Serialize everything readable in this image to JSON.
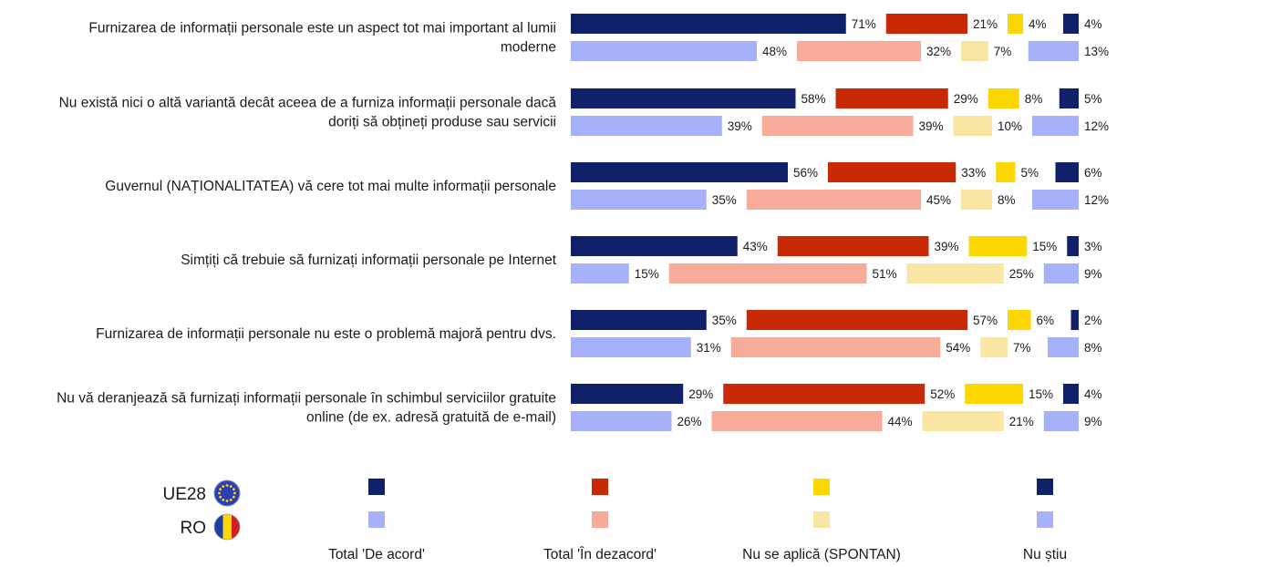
{
  "chart_data": {
    "type": "bar",
    "orientation": "horizontal",
    "stacked": true,
    "groups": [
      {
        "code": "UE28",
        "label": "UE28"
      },
      {
        "code": "RO",
        "label": "RO"
      }
    ],
    "questions": [
      {
        "label_lines": [
          "Furnizarea de informații personale este un aspect tot mai important al lumii",
          "moderne"
        ],
        "UE28": [
          71,
          21,
          4,
          4
        ],
        "RO": [
          48,
          32,
          7,
          13
        ]
      },
      {
        "label_lines": [
          "Nu există nici o altă variantă decât aceea de a furniza informații personale dacă",
          "doriți să obțineți produse sau servicii"
        ],
        "UE28": [
          58,
          29,
          8,
          5
        ],
        "RO": [
          39,
          39,
          10,
          12
        ]
      },
      {
        "label_lines": [
          "Guvernul (NAȚIONALITATEA) vă cere tot mai multe informații personale"
        ],
        "UE28": [
          56,
          33,
          5,
          6
        ],
        "RO": [
          35,
          45,
          8,
          12
        ]
      },
      {
        "label_lines": [
          "Simțiți că trebuie să furnizați informații personale pe Internet"
        ],
        "UE28": [
          43,
          39,
          15,
          3
        ],
        "RO": [
          15,
          51,
          25,
          9
        ]
      },
      {
        "label_lines": [
          "Furnizarea de informații personale nu este o problemă majoră pentru dvs."
        ],
        "UE28": [
          35,
          57,
          6,
          2
        ],
        "RO": [
          31,
          54,
          7,
          8
        ]
      },
      {
        "label_lines": [
          "Nu vă deranjează să furnizați informații personale în schimbul serviciilor gratuite",
          "online (de ex. adresă gratuită de e-mail)"
        ],
        "UE28": [
          29,
          52,
          15,
          4
        ],
        "RO": [
          26,
          44,
          21,
          9
        ]
      }
    ],
    "categories": [
      {
        "name": "Total 'De acord'",
        "UE28_color": "#10206b",
        "RO_color": "#a6b1fa"
      },
      {
        "name": "Total 'În dezacord'",
        "UE28_color": "#c92a05",
        "RO_color": "#f7ab98"
      },
      {
        "name": "Nu se aplică (SPONTAN)",
        "UE28_color": "#ffd700",
        "RO_color": "#fae6a3"
      },
      {
        "name": "Nu știu",
        "UE28_color": "#10206b",
        "RO_color": "#a6b1fa"
      }
    ],
    "value_suffix": "%",
    "legend_position": "bottom"
  }
}
